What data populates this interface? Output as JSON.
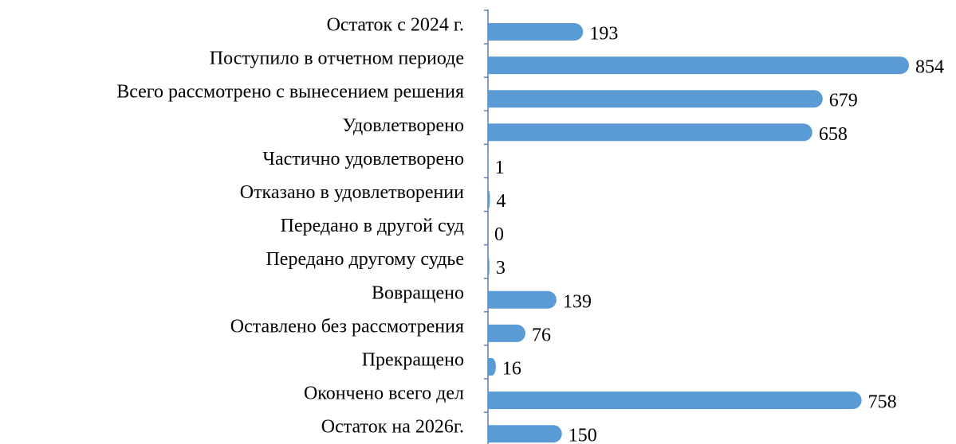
{
  "chart_data": {
    "type": "barh",
    "color": "#5b9bd5",
    "categories": [
      "Остаток с 2024 г.",
      "Поступило в отчетном периоде",
      "Всего рассмотрено с вынесением решения",
      "Удовлетворено",
      "Частично удовлетворено",
      "Отказано в удовлетворении",
      "Передано в другой суд",
      "Передано другому судье",
      "Вовращено",
      "Оставлено без рассмотрения",
      "Прекращено",
      "Окончено всего дел",
      "Остаток на 2026г."
    ],
    "values": [
      193,
      854,
      679,
      658,
      1,
      4,
      0,
      3,
      139,
      76,
      16,
      758,
      150
    ]
  }
}
